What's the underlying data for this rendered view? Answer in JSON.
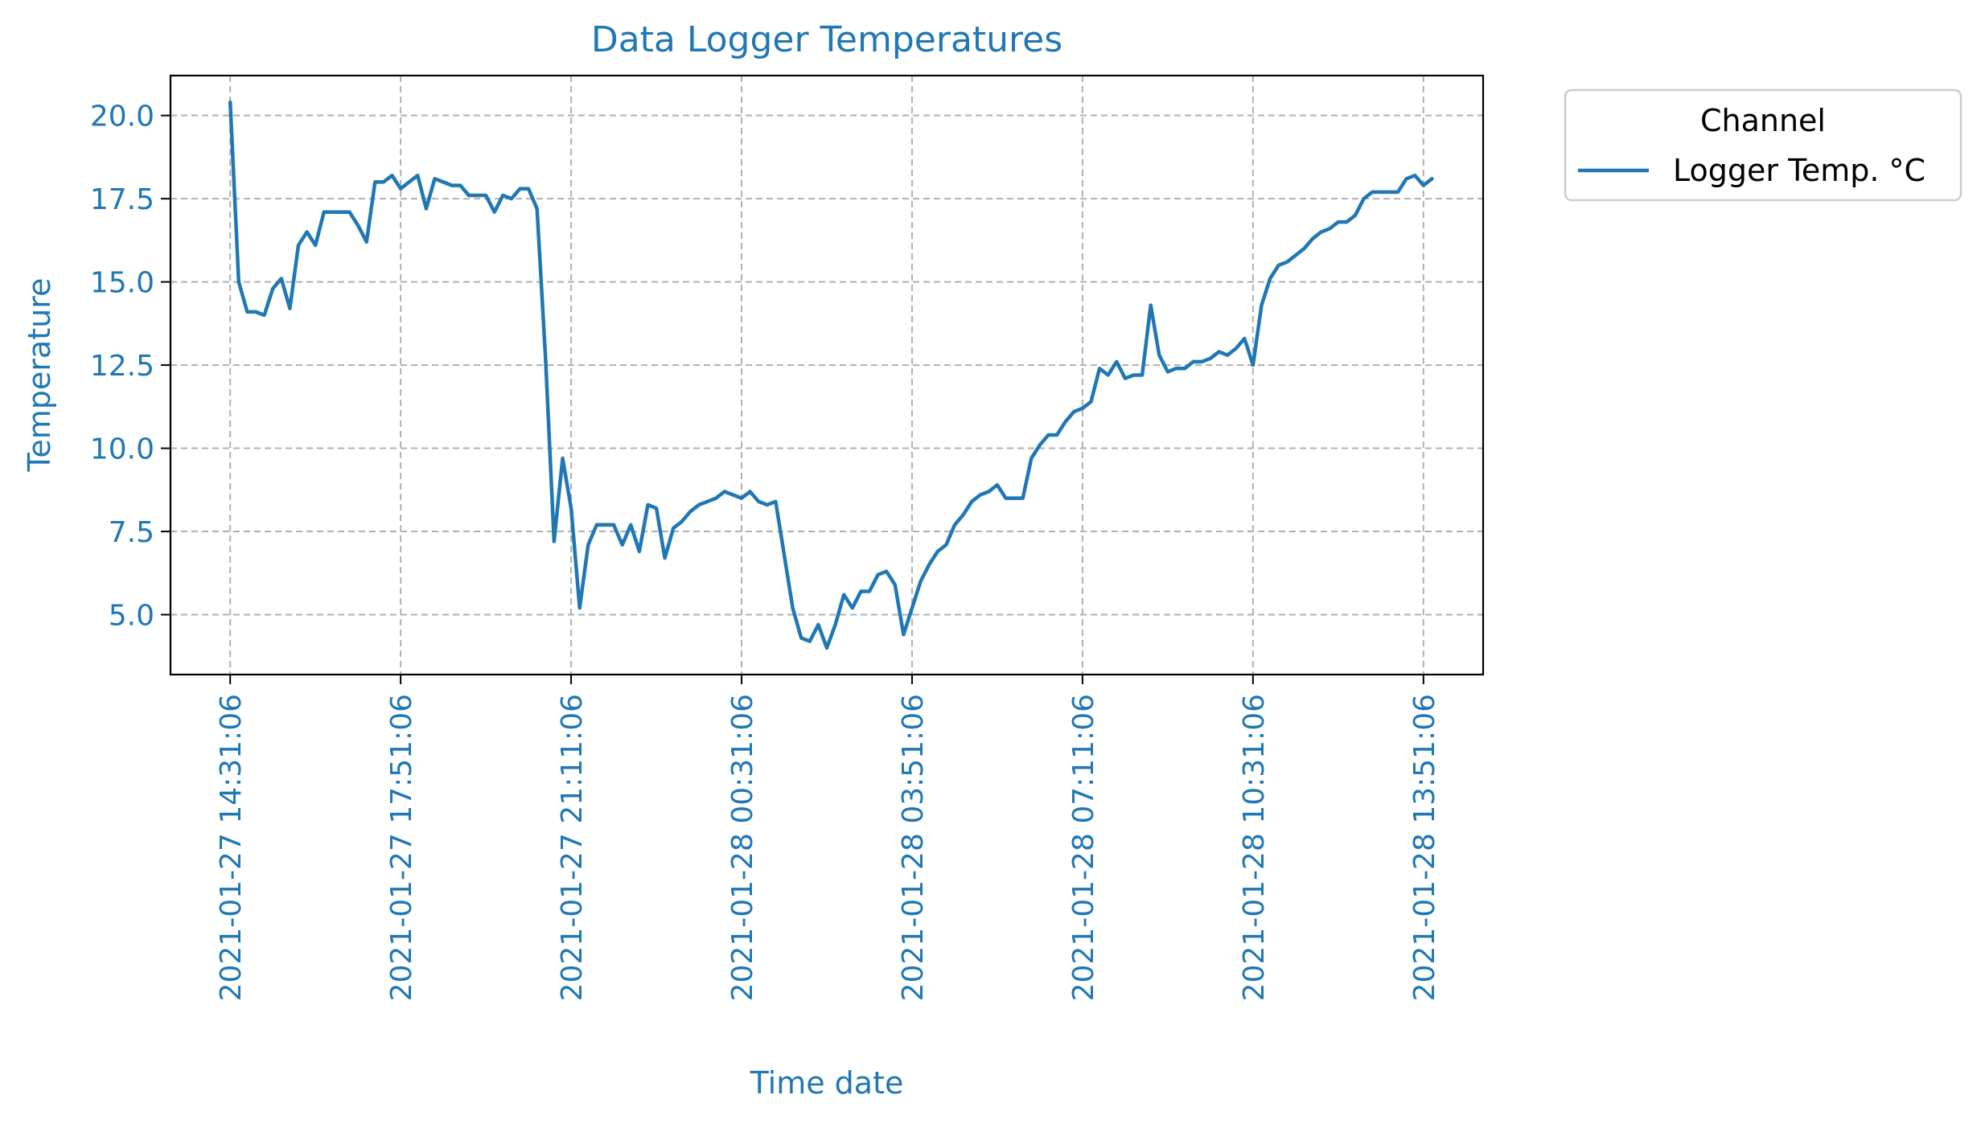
{
  "chart_data": {
    "type": "line",
    "title": "Data Logger Temperatures",
    "xlabel": "Time date",
    "ylabel": "Temperature",
    "ylim": [
      3.2,
      21.2
    ],
    "y_ticks": [
      5.0,
      7.5,
      10.0,
      12.5,
      15.0,
      17.5,
      20.0
    ],
    "y_tick_labels": [
      "5.0",
      "7.5",
      "10.0",
      "12.5",
      "15.0",
      "17.5",
      "20.0"
    ],
    "x_tick_labels": [
      "2021-01-27 14:31:06",
      "2021-01-27 17:51:06",
      "2021-01-27 21:11:06",
      "2021-01-28 00:31:06",
      "2021-01-28 03:51:06",
      "2021-01-28 07:11:06",
      "2021-01-28 10:31:06",
      "2021-01-28 13:51:06"
    ],
    "xlim": [
      "2021-01-27 13:21:06",
      "2021-01-28 15:01:06"
    ],
    "grid": true,
    "legend": {
      "title": "Channel",
      "position": "outside-upper-right"
    },
    "colors": {
      "series": "#1f77b4",
      "text": "#1f77b4",
      "grid": "#b0b0b0"
    },
    "series": [
      {
        "name": "Logger Temp. °C",
        "x": [
          "2021-01-27 14:31:06",
          "2021-01-27 14:41:06",
          "2021-01-27 14:51:06",
          "2021-01-27 15:01:06",
          "2021-01-27 15:11:06",
          "2021-01-27 15:21:06",
          "2021-01-27 15:31:06",
          "2021-01-27 15:41:06",
          "2021-01-27 15:51:06",
          "2021-01-27 16:01:06",
          "2021-01-27 16:11:06",
          "2021-01-27 16:21:06",
          "2021-01-27 16:31:06",
          "2021-01-27 16:41:06",
          "2021-01-27 16:51:06",
          "2021-01-27 17:01:06",
          "2021-01-27 17:11:06",
          "2021-01-27 17:21:06",
          "2021-01-27 17:31:06",
          "2021-01-27 17:41:06",
          "2021-01-27 17:51:06",
          "2021-01-27 18:01:06",
          "2021-01-27 18:11:06",
          "2021-01-27 18:21:06",
          "2021-01-27 18:31:06",
          "2021-01-27 18:41:06",
          "2021-01-27 18:51:06",
          "2021-01-27 19:01:06",
          "2021-01-27 19:11:06",
          "2021-01-27 19:21:06",
          "2021-01-27 19:31:06",
          "2021-01-27 19:41:06",
          "2021-01-27 19:51:06",
          "2021-01-27 20:01:06",
          "2021-01-27 20:11:06",
          "2021-01-27 20:21:06",
          "2021-01-27 20:31:06",
          "2021-01-27 20:41:06",
          "2021-01-27 20:51:06",
          "2021-01-27 21:01:06",
          "2021-01-27 21:11:06",
          "2021-01-27 21:21:06",
          "2021-01-27 21:31:06",
          "2021-01-27 21:41:06",
          "2021-01-27 21:51:06",
          "2021-01-27 22:01:06",
          "2021-01-27 22:11:06",
          "2021-01-27 22:21:06",
          "2021-01-27 22:31:06",
          "2021-01-27 22:41:06",
          "2021-01-27 22:51:06",
          "2021-01-27 23:01:06",
          "2021-01-27 23:11:06",
          "2021-01-27 23:21:06",
          "2021-01-27 23:31:06",
          "2021-01-27 23:41:06",
          "2021-01-27 23:51:06",
          "2021-01-28 00:01:06",
          "2021-01-28 00:11:06",
          "2021-01-28 00:21:06",
          "2021-01-28 00:31:06",
          "2021-01-28 00:41:06",
          "2021-01-28 00:51:06",
          "2021-01-28 01:01:06",
          "2021-01-28 01:11:06",
          "2021-01-28 01:21:06",
          "2021-01-28 01:31:06",
          "2021-01-28 01:41:06",
          "2021-01-28 01:51:06",
          "2021-01-28 02:01:06",
          "2021-01-28 02:11:06",
          "2021-01-28 02:21:06",
          "2021-01-28 02:31:06",
          "2021-01-28 02:41:06",
          "2021-01-28 02:51:06",
          "2021-01-28 03:01:06",
          "2021-01-28 03:11:06",
          "2021-01-28 03:21:06",
          "2021-01-28 03:31:06",
          "2021-01-28 03:41:06",
          "2021-01-28 03:51:06",
          "2021-01-28 04:01:06",
          "2021-01-28 04:11:06",
          "2021-01-28 04:21:06",
          "2021-01-28 04:31:06",
          "2021-01-28 04:41:06",
          "2021-01-28 04:51:06",
          "2021-01-28 05:01:06",
          "2021-01-28 05:11:06",
          "2021-01-28 05:21:06",
          "2021-01-28 05:31:06",
          "2021-01-28 05:41:06",
          "2021-01-28 05:51:06",
          "2021-01-28 06:01:06",
          "2021-01-28 06:11:06",
          "2021-01-28 06:21:06",
          "2021-01-28 06:31:06",
          "2021-01-28 06:41:06",
          "2021-01-28 06:51:06",
          "2021-01-28 07:01:06",
          "2021-01-28 07:11:06",
          "2021-01-28 07:21:06",
          "2021-01-28 07:31:06",
          "2021-01-28 07:41:06",
          "2021-01-28 07:51:06",
          "2021-01-28 08:01:06",
          "2021-01-28 08:11:06",
          "2021-01-28 08:21:06",
          "2021-01-28 08:31:06",
          "2021-01-28 08:41:06",
          "2021-01-28 08:51:06",
          "2021-01-28 09:01:06",
          "2021-01-28 09:11:06",
          "2021-01-28 09:21:06",
          "2021-01-28 09:31:06",
          "2021-01-28 09:41:06",
          "2021-01-28 09:51:06",
          "2021-01-28 10:01:06",
          "2021-01-28 10:11:06",
          "2021-01-28 10:21:06",
          "2021-01-28 10:31:06",
          "2021-01-28 10:41:06",
          "2021-01-28 10:51:06",
          "2021-01-28 11:01:06",
          "2021-01-28 11:11:06",
          "2021-01-28 11:21:06",
          "2021-01-28 11:31:06",
          "2021-01-28 11:41:06",
          "2021-01-28 11:51:06",
          "2021-01-28 12:01:06",
          "2021-01-28 12:11:06",
          "2021-01-28 12:21:06",
          "2021-01-28 12:31:06",
          "2021-01-28 12:41:06",
          "2021-01-28 12:51:06",
          "2021-01-28 13:01:06",
          "2021-01-28 13:11:06",
          "2021-01-28 13:21:06",
          "2021-01-28 13:31:06",
          "2021-01-28 13:41:06",
          "2021-01-28 13:51:06",
          "2021-01-28 14:01:06"
        ],
        "values": [
          20.4,
          15.0,
          14.1,
          14.1,
          14.0,
          14.8,
          15.1,
          14.2,
          16.1,
          16.5,
          16.1,
          17.1,
          17.1,
          17.1,
          17.1,
          16.7,
          16.2,
          18.0,
          18.0,
          18.2,
          17.8,
          18.0,
          18.2,
          17.2,
          18.1,
          18.0,
          17.9,
          17.9,
          17.6,
          17.6,
          17.6,
          17.1,
          17.6,
          17.5,
          17.8,
          17.8,
          17.2,
          12.7,
          7.2,
          9.7,
          8.2,
          5.2,
          7.1,
          7.7,
          7.7,
          7.7,
          7.1,
          7.7,
          6.9,
          8.3,
          8.2,
          6.7,
          7.6,
          7.8,
          8.1,
          8.3,
          8.4,
          8.5,
          8.7,
          8.6,
          8.5,
          8.7,
          8.4,
          8.3,
          8.4,
          6.8,
          5.2,
          4.3,
          4.2,
          4.7,
          4.0,
          4.7,
          5.6,
          5.2,
          5.7,
          5.7,
          6.2,
          6.3,
          5.9,
          4.4,
          5.2,
          6.0,
          6.5,
          6.9,
          7.1,
          7.7,
          8.0,
          8.4,
          8.6,
          8.7,
          8.9,
          8.5,
          8.5,
          8.5,
          9.7,
          10.1,
          10.4,
          10.4,
          10.8,
          11.1,
          11.2,
          11.4,
          12.4,
          12.2,
          12.6,
          12.1,
          12.2,
          12.2,
          14.3,
          12.8,
          12.3,
          12.4,
          12.4,
          12.6,
          12.6,
          12.7,
          12.9,
          12.8,
          13.0,
          13.3,
          12.5,
          14.3,
          15.1,
          15.5,
          15.6,
          15.8,
          16.0,
          16.3,
          16.5,
          16.6,
          16.8,
          16.8,
          17.0,
          17.5,
          17.7,
          17.7,
          17.7,
          17.7,
          18.1,
          18.2,
          17.9,
          18.1
        ]
      }
    ]
  }
}
